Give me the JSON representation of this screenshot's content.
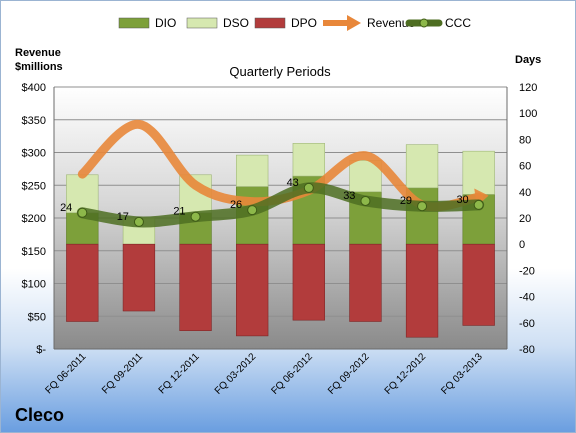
{
  "company": "Cleco",
  "chart_data": {
    "type": "bar",
    "title": "Quarterly Periods",
    "y_left_label": [
      "Revenue",
      "$millions"
    ],
    "y_right_label": "Days",
    "legend_position": "top",
    "categories": [
      "FQ 06-2011",
      "FQ 09-2011",
      "FQ 12-2011",
      "FQ 03-2012",
      "FQ 06-2012",
      "FQ 09-2012",
      "FQ 12-2012",
      "FQ 03-2013"
    ],
    "left_axis": {
      "min": 0,
      "max": 400,
      "step": 50,
      "ticks": [
        "$-",
        "$50",
        "$100",
        "$150",
        "$200",
        "$250",
        "$300",
        "$350",
        "$400"
      ]
    },
    "right_axis": {
      "min": -80,
      "max": 120,
      "step": 20
    },
    "series": [
      {
        "name": "DIO",
        "type": "bar",
        "axis": "right",
        "color": "#7da03a",
        "values": [
          24,
          0,
          24,
          44,
          52,
          40,
          43,
          38
        ]
      },
      {
        "name": "DSO",
        "type": "bar",
        "axis": "right",
        "color": "#d6e8b0",
        "values": [
          29,
          20,
          29,
          24,
          25,
          24,
          33,
          33
        ]
      },
      {
        "name": "DPO",
        "type": "bar",
        "axis": "right",
        "color": "#b23c3c",
        "values": [
          -59,
          -51,
          -66,
          -70,
          -58,
          -59,
          -71,
          -62
        ]
      },
      {
        "name": "Revenue",
        "type": "line",
        "axis": "left",
        "color": "#e8873a",
        "values": [
          267,
          343,
          250,
          225,
          242,
          295,
          220,
          232
        ]
      },
      {
        "name": "CCC",
        "type": "line",
        "axis": "right",
        "color": "#4e6e22",
        "values": [
          24,
          17,
          21,
          26,
          43,
          33,
          29,
          30
        ]
      }
    ],
    "data_labels": [
      "24",
      "17",
      "21",
      "26",
      "43",
      "33",
      "29",
      "30"
    ]
  }
}
